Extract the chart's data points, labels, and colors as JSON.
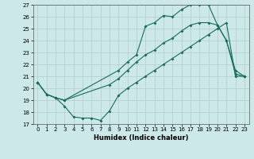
{
  "xlabel": "Humidex (Indice chaleur)",
  "bg_color": "#cce8e8",
  "grid_color": "#b0cccc",
  "line_color": "#1a6b5a",
  "xlim": [
    -0.5,
    23.5
  ],
  "ylim": [
    17,
    27
  ],
  "xticks": [
    0,
    1,
    2,
    3,
    4,
    5,
    6,
    7,
    8,
    9,
    10,
    11,
    12,
    13,
    14,
    15,
    16,
    17,
    18,
    19,
    20,
    21,
    22,
    23
  ],
  "yticks": [
    17,
    18,
    19,
    20,
    21,
    22,
    23,
    24,
    25,
    26,
    27
  ],
  "curve1_x": [
    0,
    1,
    2,
    3,
    4,
    5,
    6,
    7,
    8,
    9,
    10,
    11,
    12,
    13,
    14,
    15,
    16,
    17,
    18,
    19,
    20,
    21,
    22,
    23
  ],
  "curve1_y": [
    20.5,
    19.5,
    19.2,
    18.5,
    17.6,
    17.5,
    17.5,
    17.3,
    18.1,
    19.4,
    20.0,
    20.5,
    21.0,
    21.5,
    22.0,
    22.5,
    23.0,
    23.5,
    24.0,
    24.5,
    25.0,
    25.5,
    21.0,
    21.0
  ],
  "curve2_x": [
    0,
    1,
    2,
    3,
    9,
    10,
    11,
    12,
    13,
    14,
    15,
    16,
    17,
    18,
    19,
    20,
    21,
    22,
    23
  ],
  "curve2_y": [
    20.5,
    19.5,
    19.2,
    19.0,
    21.5,
    22.2,
    22.8,
    25.2,
    25.5,
    26.1,
    26.0,
    26.6,
    27.0,
    27.0,
    27.0,
    25.3,
    24.0,
    21.5,
    21.0
  ],
  "curve3_x": [
    0,
    1,
    2,
    3,
    8,
    9,
    10,
    11,
    12,
    13,
    14,
    15,
    16,
    17,
    18,
    19,
    20,
    21,
    22,
    23
  ],
  "curve3_y": [
    20.5,
    19.5,
    19.2,
    19.0,
    20.3,
    20.8,
    21.5,
    22.2,
    22.8,
    23.2,
    23.8,
    24.2,
    24.8,
    25.3,
    25.5,
    25.5,
    25.3,
    24.0,
    21.2,
    21.0
  ],
  "xlabel_fontsize": 6.0,
  "tick_fontsize": 5.0
}
